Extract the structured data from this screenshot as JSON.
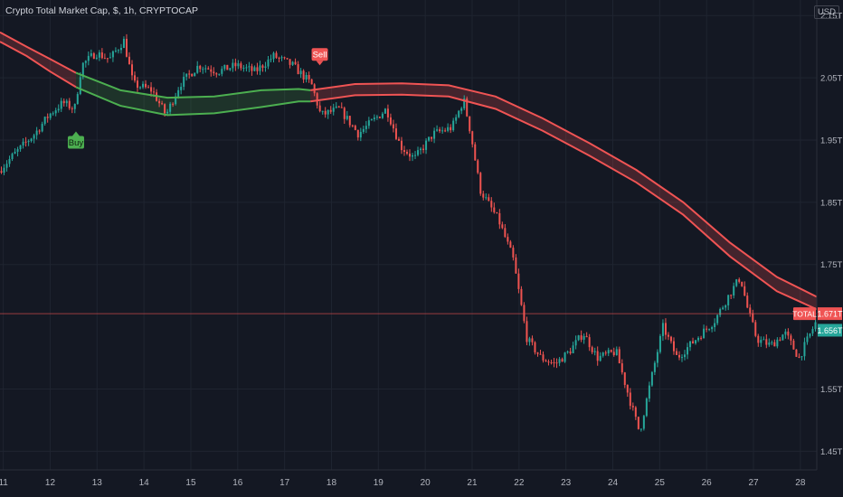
{
  "header": {
    "title": "Crypto Total Market Cap, $, 1h, CRYPTOCAP",
    "currency": "USD"
  },
  "colors": {
    "background": "#141823",
    "up": "#26a69a",
    "down": "#ef5350",
    "band_green": "#4caf50",
    "band_red": "#f05454",
    "grid": "#1f2430",
    "axis_text": "#b2b5be"
  },
  "chart_data": {
    "type": "candlestick",
    "title": "Crypto Total Market Cap, $, 1h, CRYPTOCAP",
    "x_ticks": [
      "11",
      "12",
      "13",
      "14",
      "15",
      "16",
      "17",
      "18",
      "19",
      "20",
      "21",
      "22",
      "23",
      "24",
      "25",
      "26",
      "27",
      "28"
    ],
    "x_range": [
      10.93,
      28.35
    ],
    "y_ticks": [
      {
        "value": 2.15,
        "label": "2.15T"
      },
      {
        "value": 2.05,
        "label": "2.05T"
      },
      {
        "value": 1.95,
        "label": "1.95T"
      },
      {
        "value": 1.85,
        "label": "1.85T"
      },
      {
        "value": 1.75,
        "label": "1.75T"
      },
      {
        "value": 1.55,
        "label": "1.55T"
      },
      {
        "value": 1.45,
        "label": "1.45T"
      }
    ],
    "y_range": [
      1.42,
      2.175
    ],
    "price_path": [
      [
        10.93,
        1.9
      ],
      [
        11.3,
        1.93
      ],
      [
        11.7,
        1.96
      ],
      [
        12.0,
        1.99
      ],
      [
        12.3,
        2.01
      ],
      [
        12.55,
        2.0
      ],
      [
        12.7,
        2.07
      ],
      [
        13.0,
        2.09
      ],
      [
        13.3,
        2.08
      ],
      [
        13.6,
        2.11
      ],
      [
        13.8,
        2.04
      ],
      [
        14.2,
        2.03
      ],
      [
        14.5,
        1.99
      ],
      [
        14.8,
        2.04
      ],
      [
        15.2,
        2.07
      ],
      [
        15.6,
        2.06
      ],
      [
        16.0,
        2.07
      ],
      [
        16.4,
        2.06
      ],
      [
        16.8,
        2.085
      ],
      [
        17.2,
        2.07
      ],
      [
        17.6,
        2.04
      ],
      [
        17.8,
        1.99
      ],
      [
        18.2,
        2.0
      ],
      [
        18.6,
        1.96
      ],
      [
        19.2,
        2.0
      ],
      [
        19.5,
        1.94
      ],
      [
        19.8,
        1.92
      ],
      [
        20.2,
        1.96
      ],
      [
        20.6,
        1.97
      ],
      [
        20.85,
        2.015
      ],
      [
        21.0,
        1.96
      ],
      [
        21.2,
        1.87
      ],
      [
        21.6,
        1.82
      ],
      [
        21.9,
        1.76
      ],
      [
        22.2,
        1.63
      ],
      [
        22.5,
        1.6
      ],
      [
        22.8,
        1.59
      ],
      [
        23.1,
        1.61
      ],
      [
        23.4,
        1.64
      ],
      [
        23.7,
        1.6
      ],
      [
        24.1,
        1.61
      ],
      [
        24.4,
        1.53
      ],
      [
        24.6,
        1.48
      ],
      [
        24.8,
        1.55
      ],
      [
        25.1,
        1.65
      ],
      [
        25.4,
        1.6
      ],
      [
        25.8,
        1.63
      ],
      [
        26.2,
        1.66
      ],
      [
        26.5,
        1.7
      ],
      [
        26.75,
        1.73
      ],
      [
        26.9,
        1.68
      ],
      [
        27.1,
        1.63
      ],
      [
        27.4,
        1.62
      ],
      [
        27.7,
        1.64
      ],
      [
        28.0,
        1.6
      ],
      [
        28.35,
        1.656
      ]
    ],
    "band_upper": [
      [
        10.93,
        2.123
      ],
      [
        11.5,
        2.1
      ],
      [
        12.0,
        2.08
      ],
      [
        12.55,
        2.058
      ],
      [
        13.5,
        2.03
      ],
      [
        14.5,
        2.018
      ],
      [
        15.5,
        2.02
      ],
      [
        16.5,
        2.03
      ],
      [
        17.3,
        2.032
      ],
      [
        17.55,
        2.03
      ],
      [
        18.5,
        2.04
      ],
      [
        19.5,
        2.041
      ],
      [
        20.5,
        2.038
      ],
      [
        21.5,
        2.02
      ],
      [
        22.5,
        1.985
      ],
      [
        23.5,
        1.945
      ],
      [
        24.5,
        1.902
      ],
      [
        25.5,
        1.85
      ],
      [
        26.5,
        1.785
      ],
      [
        27.5,
        1.73
      ],
      [
        28.35,
        1.698
      ]
    ],
    "band_lower": [
      [
        10.93,
        2.108
      ],
      [
        11.5,
        2.085
      ],
      [
        12.0,
        2.06
      ],
      [
        12.55,
        2.035
      ],
      [
        13.5,
        2.005
      ],
      [
        14.5,
        1.99
      ],
      [
        15.5,
        1.993
      ],
      [
        16.5,
        2.003
      ],
      [
        17.3,
        2.012
      ],
      [
        17.55,
        2.012
      ],
      [
        18.5,
        2.022
      ],
      [
        19.5,
        2.023
      ],
      [
        20.5,
        2.02
      ],
      [
        21.5,
        2.0
      ],
      [
        22.5,
        1.965
      ],
      [
        23.5,
        1.925
      ],
      [
        24.5,
        1.882
      ],
      [
        25.5,
        1.83
      ],
      [
        26.5,
        1.763
      ],
      [
        27.5,
        1.707
      ],
      [
        28.35,
        1.678
      ]
    ],
    "band_turn_x": 17.55,
    "signals": [
      {
        "label": "Buy",
        "x": 12.55,
        "y": 2.0,
        "type": "buy"
      },
      {
        "label": "Sell",
        "x": 17.75,
        "y": 2.06,
        "type": "sell"
      }
    ],
    "price_line": {
      "value": 1.671,
      "label": "1.671T",
      "series_label": "TOTAL"
    },
    "last_price": {
      "value": 1.656,
      "label": "1.656T"
    }
  }
}
